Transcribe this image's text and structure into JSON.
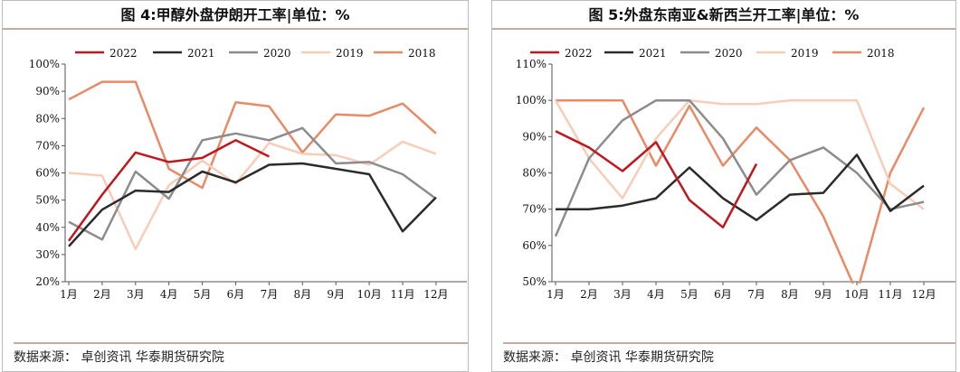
{
  "charts": [
    {
      "title": "图 4:甲醇外盘伊朗开工率|单位：%",
      "source": "数据来源： 卓创资讯 华泰期货研究院"
    },
    {
      "title": "图 5:外盘东南亚&新西兰开工率|单位：%",
      "source": "数据来源： 卓创资讯 华泰期货研究院"
    }
  ],
  "chart_data": [
    {
      "type": "line",
      "categories": [
        "1月",
        "2月",
        "3月",
        "4月",
        "5月",
        "6月",
        "7月",
        "8月",
        "9月",
        "10月",
        "11月",
        "12月"
      ],
      "ylim": [
        20,
        100
      ],
      "yticks": [
        "20%",
        "30%",
        "40%",
        "50%",
        "60%",
        "70%",
        "80%",
        "90%",
        "100%"
      ],
      "legend_position": "top",
      "series": [
        {
          "name": "2022",
          "color": "#c0171e",
          "values": [
            35,
            52,
            67.5,
            64,
            65.5,
            72,
            66,
            null,
            null,
            null,
            null,
            null
          ]
        },
        {
          "name": "2021",
          "color": "#2b2b2b",
          "values": [
            33,
            46.5,
            53.5,
            53,
            60.5,
            56.5,
            63,
            63.5,
            61.5,
            59.5,
            38.5,
            51
          ]
        },
        {
          "name": "2020",
          "color": "#8c8c8c",
          "values": [
            42,
            35.5,
            60.5,
            50.5,
            72,
            74.5,
            72,
            76.5,
            63.5,
            64,
            59.5,
            50.5
          ]
        },
        {
          "name": "2019",
          "color": "#f7cdb8",
          "values": [
            60,
            59,
            32,
            55.5,
            64.5,
            56,
            71,
            67,
            66.5,
            63,
            71.5,
            67
          ]
        },
        {
          "name": "2018",
          "color": "#e98a66",
          "values": [
            87,
            93.5,
            93.5,
            61.5,
            54.5,
            86,
            84.5,
            67.5,
            81.5,
            81,
            85.5,
            74.5
          ]
        }
      ]
    },
    {
      "type": "line",
      "categories": [
        "1月",
        "2月",
        "3月",
        "4月",
        "5月",
        "6月",
        "7月",
        "8月",
        "9月",
        "10月",
        "11月",
        "12月"
      ],
      "ylim": [
        50,
        110
      ],
      "yticks": [
        "50%",
        "60%",
        "70%",
        "80%",
        "90%",
        "100%",
        "110%"
      ],
      "legend_position": "top",
      "series": [
        {
          "name": "2022",
          "color": "#c0171e",
          "values": [
            91.5,
            87,
            80.5,
            88.5,
            72.5,
            65,
            82.5,
            null,
            null,
            null,
            null,
            null
          ]
        },
        {
          "name": "2021",
          "color": "#2b2b2b",
          "values": [
            70,
            70,
            71,
            73,
            81.5,
            73,
            67,
            74,
            74.5,
            85,
            69.5,
            76.5
          ]
        },
        {
          "name": "2020",
          "color": "#8c8c8c",
          "values": [
            62.5,
            84,
            94.5,
            100,
            100,
            89.5,
            74,
            83.5,
            87,
            80,
            70,
            72
          ]
        },
        {
          "name": "2019",
          "color": "#f7cdb8",
          "values": [
            100,
            84,
            73,
            89.5,
            100,
            99,
            99,
            100,
            100,
            100,
            77,
            70
          ]
        },
        {
          "name": "2018",
          "color": "#e98a66",
          "values": [
            100,
            100,
            100,
            82,
            98.5,
            82,
            92.5,
            83.5,
            68,
            47,
            80,
            98
          ]
        }
      ]
    }
  ]
}
